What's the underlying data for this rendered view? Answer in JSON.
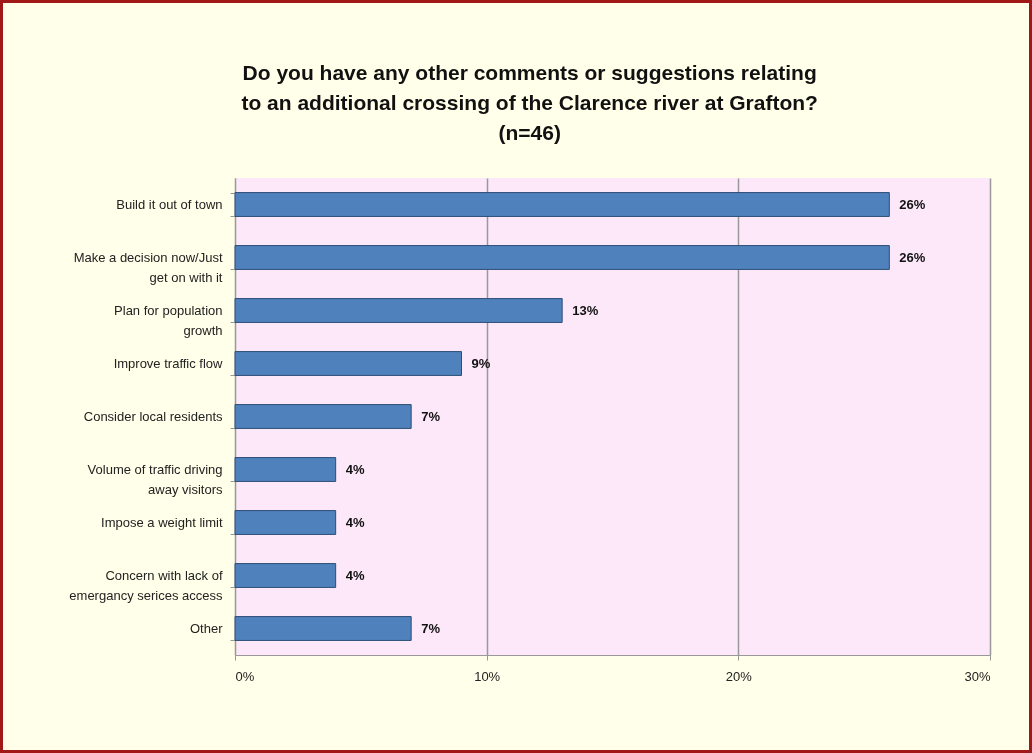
{
  "chart_data": {
    "type": "bar",
    "orientation": "horizontal",
    "title": "Do you have any other comments or suggestions relating\nto an additional crossing of the Clarence river at Grafton?\n(n=46)",
    "categories": [
      "Build it out of town",
      "Make a decision now/Just\nget on with  it",
      "Plan for population\ngrowth",
      "Improve traffic flow",
      "Consider local residents",
      "Volume of traffic driving\naway visitors",
      "Impose a weight limit",
      "Concern with lack of\nemergancy serices access",
      "Other"
    ],
    "values": [
      26,
      26,
      13,
      9,
      7,
      4,
      4,
      4,
      7
    ],
    "value_labels": [
      "26%",
      "26%",
      "13%",
      "9%",
      "7%",
      "4%",
      "4%",
      "4%",
      "7%"
    ],
    "color": "#4f81bd",
    "xlim": [
      0,
      30
    ],
    "xticks": [
      {
        "value": 0,
        "label": "0%"
      },
      {
        "value": 10,
        "label": "10%"
      },
      {
        "value": 20,
        "label": "20%"
      },
      {
        "value": 30,
        "label": "30%"
      }
    ],
    "grid": "x"
  }
}
